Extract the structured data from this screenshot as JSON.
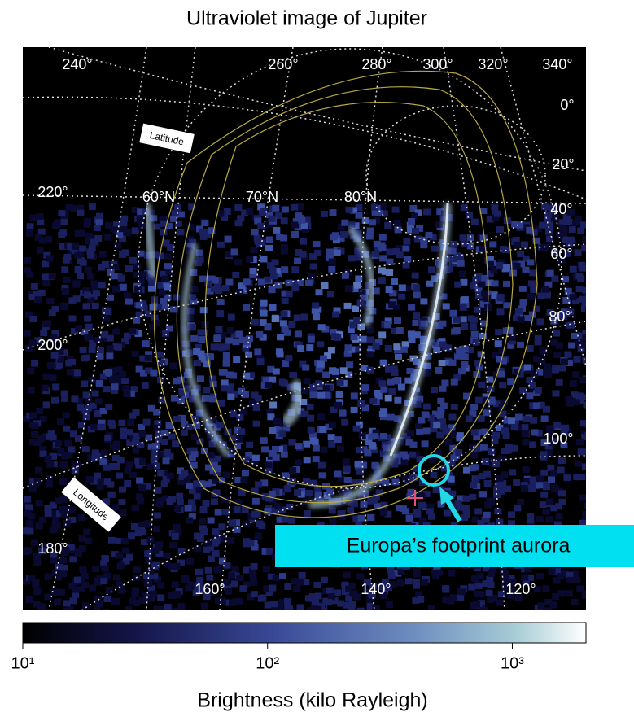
{
  "title": "Ultraviolet image of Jupiter",
  "longitude_labels": [
    "240°",
    "260°",
    "280°",
    "300°",
    "320°",
    "340°",
    "0°",
    "20°",
    "40°",
    "60°",
    "80°",
    "100°",
    "120°",
    "140°",
    "160°",
    "180°",
    "200°",
    "220°"
  ],
  "latitude_labels": [
    "60°N",
    "70°N",
    "80°N"
  ],
  "grid_tags": {
    "latitude": "Latitude",
    "longitude": "Longitude"
  },
  "annotation": "Europa’s footprint aurora",
  "colorbar": {
    "label": "Brightness (kilo Rayleigh)",
    "scale": "log",
    "lim": [
      10,
      2000
    ],
    "ticks": [
      {
        "value": 10,
        "label": "10¹"
      },
      {
        "value": 100,
        "label": "10²"
      },
      {
        "value": 1000,
        "label": "10³"
      }
    ]
  }
}
